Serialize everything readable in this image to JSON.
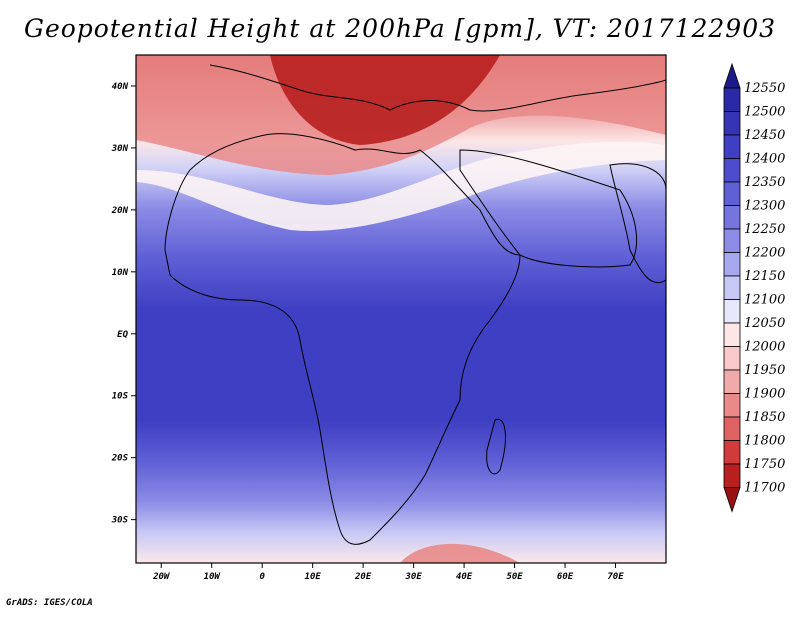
{
  "title": "Geopotential Height at 200hPa [gpm], VT: 2017122903",
  "footer": "GrADS: IGES/COLA",
  "map": {
    "variable": "Geopotential Height",
    "level": "200hPa",
    "units": "gpm",
    "valid_time": "2017122903",
    "lon_range": [
      -25,
      80
    ],
    "lat_range": [
      -37,
      45
    ],
    "lon_ticks": [
      {
        "value": -20,
        "label": "20W"
      },
      {
        "value": -10,
        "label": "10W"
      },
      {
        "value": 0,
        "label": "0"
      },
      {
        "value": 10,
        "label": "10E"
      },
      {
        "value": 20,
        "label": "20E"
      },
      {
        "value": 30,
        "label": "30E"
      },
      {
        "value": 40,
        "label": "40E"
      },
      {
        "value": 50,
        "label": "50E"
      },
      {
        "value": 60,
        "label": "60E"
      },
      {
        "value": 70,
        "label": "70E"
      }
    ],
    "lat_ticks": [
      {
        "value": 40,
        "label": "40N"
      },
      {
        "value": 30,
        "label": "30N"
      },
      {
        "value": 20,
        "label": "20N"
      },
      {
        "value": 10,
        "label": "10N"
      },
      {
        "value": 0,
        "label": "EQ"
      },
      {
        "value": -10,
        "label": "10S"
      },
      {
        "value": -20,
        "label": "20S"
      },
      {
        "value": -30,
        "label": "30S"
      }
    ]
  },
  "colorbar": {
    "levels": [
      "12550",
      "12500",
      "12450",
      "12400",
      "12350",
      "12300",
      "12250",
      "12200",
      "12150",
      "12100",
      "12050",
      "12000",
      "11950",
      "11900",
      "11850",
      "11800",
      "11750",
      "11700"
    ],
    "colors": [
      "#1d1b8a",
      "#2b2aa6",
      "#3534b5",
      "#3f3fc3",
      "#4d4ccd",
      "#5f5fd6",
      "#7675de",
      "#8c8ce6",
      "#a7a7ee",
      "#c8c8f6",
      "#e8e8fc",
      "#fde6e6",
      "#f7c9c9",
      "#f0aaaa",
      "#e98989",
      "#df6262",
      "#d13b3b",
      "#b81f1f",
      "#981010"
    ]
  }
}
